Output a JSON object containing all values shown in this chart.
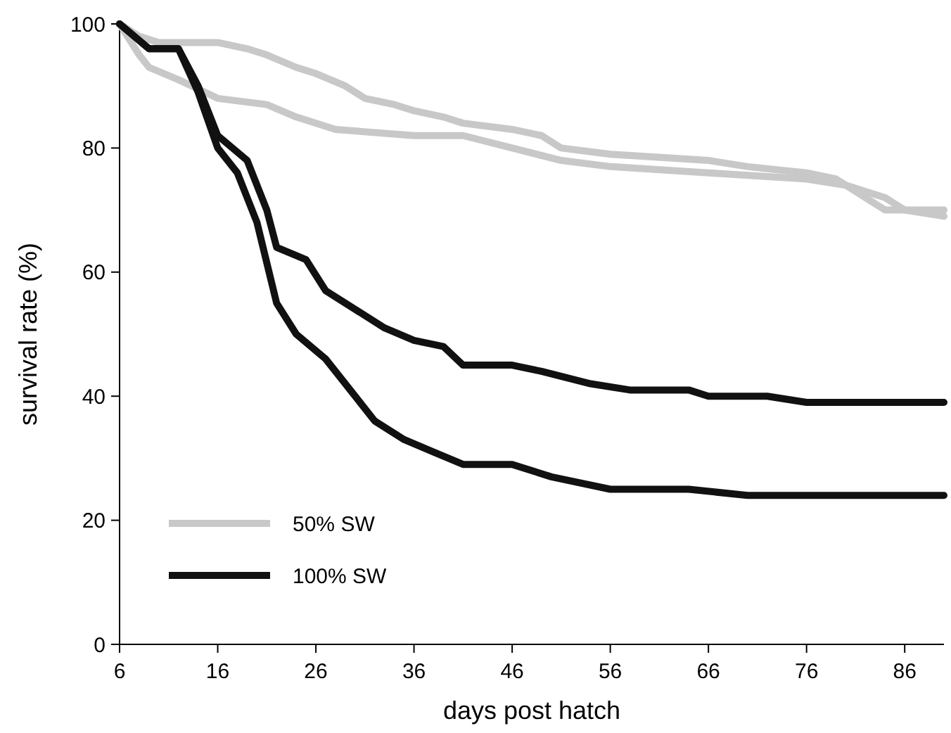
{
  "chart_data": {
    "type": "line",
    "xlabel": "days post hatch",
    "ylabel": "survival rate (%)",
    "xlim": [
      6,
      90
    ],
    "xticks": [
      6,
      16,
      26,
      36,
      46,
      56,
      66,
      76,
      86
    ],
    "ylim": [
      0,
      100
    ],
    "yticks": [
      0,
      20,
      40,
      60,
      80,
      100
    ],
    "legend": "bottom left",
    "grid": false,
    "marker": "none",
    "line_style": "solid",
    "series": [
      {
        "name": "50% SW",
        "color": "#c8c8c8",
        "x": [
          6,
          8,
          10,
          16,
          19,
          21,
          24,
          26,
          29,
          31,
          34,
          36,
          39,
          41,
          46,
          49,
          51,
          56,
          66,
          70,
          76,
          79,
          80,
          82,
          84,
          86,
          90
        ],
        "values": [
          100,
          98,
          97,
          97,
          96,
          95,
          93,
          92,
          90,
          88,
          87,
          86,
          85,
          84,
          83,
          82,
          80,
          79,
          78,
          77,
          76,
          75,
          74,
          72,
          70,
          70,
          70
        ]
      },
      {
        "color": "#c8c8c8",
        "x": [
          6,
          8,
          9,
          12,
          16,
          21,
          24,
          28,
          36,
          41,
          46,
          51,
          56,
          66,
          76,
          80,
          84,
          86,
          90
        ],
        "values": [
          100,
          95,
          93,
          91,
          88,
          87,
          85,
          83,
          82,
          82,
          80,
          78,
          77,
          76,
          75,
          74,
          72,
          70,
          69
        ]
      },
      {
        "name": "100% SW",
        "color": "#111111",
        "x": [
          6,
          9,
          12,
          14,
          16,
          19,
          21,
          22,
          25,
          27,
          30,
          33,
          36,
          39,
          41,
          46,
          49,
          54,
          58,
          64,
          66,
          72,
          76,
          90
        ],
        "values": [
          100,
          96,
          96,
          90,
          82,
          78,
          70,
          64,
          62,
          57,
          54,
          51,
          49,
          48,
          45,
          45,
          44,
          42,
          41,
          41,
          40,
          40,
          39,
          39
        ]
      },
      {
        "color": "#111111",
        "x": [
          6,
          9,
          12,
          14,
          16,
          18,
          20,
          22,
          24,
          27,
          30,
          32,
          35,
          38,
          41,
          46,
          50,
          56,
          64,
          70,
          90
        ],
        "values": [
          100,
          96,
          96,
          89,
          80,
          76,
          68,
          55,
          50,
          46,
          40,
          36,
          33,
          31,
          29,
          29,
          27,
          25,
          25,
          24,
          24
        ]
      }
    ]
  }
}
